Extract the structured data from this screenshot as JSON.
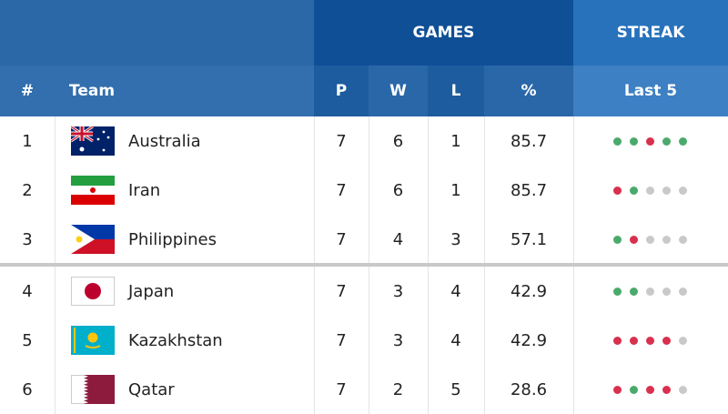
{
  "header": {
    "group_labels": [
      "GAMES",
      "STREAK"
    ],
    "columns": [
      "#",
      "Team",
      "P",
      "W",
      "L",
      "%",
      "Last 5"
    ]
  },
  "table": {
    "rows": [
      {
        "rank": 1,
        "team": "Australia",
        "p": 7,
        "w": 6,
        "l": 1,
        "pct": 85.7,
        "last5_colors": [
          "#4aaa6b",
          "#4aaa6b",
          "#d9304d",
          "#4aaa6b",
          "#4aaa6b"
        ]
      },
      {
        "rank": 2,
        "team": "Iran",
        "p": 7,
        "w": 6,
        "l": 1,
        "pct": 85.7,
        "last5_colors": [
          "#d9304d",
          "#4aaa6b",
          "#c9c9c9",
          "#c9c9c9",
          "#c9c9c9"
        ]
      },
      {
        "rank": 3,
        "team": "Philippines",
        "p": 7,
        "w": 4,
        "l": 3,
        "pct": 57.1,
        "last5_colors": [
          "#4aaa6b",
          "#d9304d",
          "#c9c9c9",
          "#c9c9c9",
          "#c9c9c9"
        ]
      },
      {
        "rank": 4,
        "team": "Japan",
        "p": 7,
        "w": 3,
        "l": 4,
        "pct": 42.9,
        "last5_colors": [
          "#4aaa6b",
          "#4aaa6b",
          "#c9c9c9",
          "#c9c9c9",
          "#c9c9c9"
        ]
      },
      {
        "rank": 5,
        "team": "Kazakhstan",
        "p": 7,
        "w": 3,
        "l": 4,
        "pct": 42.9,
        "last5_colors": [
          "#d9304d",
          "#d9304d",
          "#d9304d",
          "#d9304d",
          "#c9c9c9"
        ]
      },
      {
        "rank": 6,
        "team": "Qatar",
        "p": 7,
        "w": 2,
        "l": 5,
        "pct": 28.6,
        "last5_colors": [
          "#d9304d",
          "#4aaa6b",
          "#d9304d",
          "#d9304d",
          "#c9c9c9"
        ]
      }
    ]
  }
}
